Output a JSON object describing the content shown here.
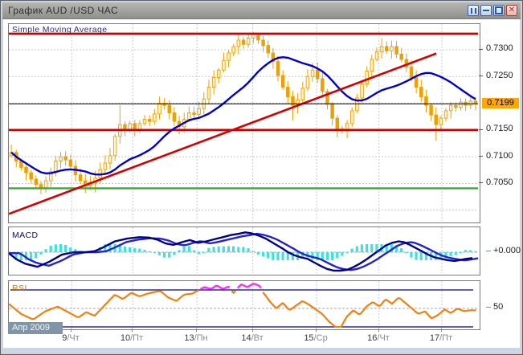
{
  "window": {
    "title": "График AUD /USD  ЧАС",
    "controls": [
      {
        "name": "pause",
        "glyph": "❚❚"
      },
      {
        "name": "minimize",
        "glyph": "—"
      },
      {
        "name": "maximize",
        "glyph": "▢"
      },
      {
        "name": "close",
        "glyph": "✕"
      }
    ]
  },
  "colors": {
    "candle": "#EDA005",
    "candle_fill_up": "#FFF3D0",
    "sma": "#0000CC",
    "trend": "#D40000",
    "hline_red": "#C80000",
    "hline_green": "#2EB02E",
    "price_line": "#000000",
    "macd_line": "#000088",
    "signal_line": "#2424CC",
    "histogram": "#3CE2E2",
    "rsi_line": "#F08010",
    "rsi_hot": "#FF2BFF",
    "rsi_level": "#000080",
    "grid": "#C8C8C8",
    "zero_dash": "#A8A8A8",
    "badge_bg": "#FFA800",
    "month_bg": "#7F96AA"
  },
  "axis": {
    "month_label": "Апр 2009",
    "x_labels": [
      {
        "d": "9",
        "w": "/Чт",
        "f": 0.134
      },
      {
        "d": "10",
        "w": "/Пт",
        "f": 0.264
      },
      {
        "d": "13",
        "w": "/Пн",
        "f": 0.401
      },
      {
        "d": "14",
        "w": "/Вт",
        "f": 0.52
      },
      {
        "d": "15",
        "w": "/Ср",
        "f": 0.656
      },
      {
        "d": "16",
        "w": "/Чт",
        "f": 0.789
      },
      {
        "d": "17",
        "w": "/Пт",
        "f": 0.923
      }
    ]
  },
  "chart_data": [
    {
      "type": "candlestick",
      "title": "Simple Moving Average",
      "pair": "AUD/USD",
      "timeframe": "1 час",
      "ylim": [
        0.698,
        0.7348
      ],
      "grid_prices": [
        0.73,
        0.725,
        0.72,
        0.715,
        0.71,
        0.705,
        0.7
      ],
      "y_tick_labels": [
        {
          "text": "0.7300",
          "value": 0.73
        },
        {
          "text": "0.7250",
          "value": 0.725
        },
        {
          "text": "0.7150",
          "value": 0.715
        },
        {
          "text": "0.7100",
          "value": 0.71
        },
        {
          "text": "0.7050",
          "value": 0.705
        }
      ],
      "current_price": 0.7199,
      "current_label": "0.7199",
      "sma_window": 16,
      "hlines": [
        {
          "price": 0.733,
          "color_key": "hline_red",
          "w": 2.6
        },
        {
          "price": 0.715,
          "color_key": "hline_red",
          "w": 2.6
        },
        {
          "price": 0.7041,
          "color_key": "hline_green",
          "w": 2.4
        },
        {
          "price": 0.7199,
          "color_key": "price_line",
          "w": 1
        }
      ],
      "trendline": {
        "f1": 0.0,
        "p1": 0.6993,
        "f2": 0.911,
        "p2": 0.7293
      },
      "closes": [
        0.7108,
        0.7092,
        0.708,
        0.707,
        0.7058,
        0.7048,
        0.704,
        0.7055,
        0.7072,
        0.7092,
        0.71,
        0.7094,
        0.7082,
        0.7066,
        0.7055,
        0.7046,
        0.7052,
        0.706,
        0.7076,
        0.7088,
        0.7102,
        0.7138,
        0.716,
        0.715,
        0.7162,
        0.7151,
        0.7162,
        0.717,
        0.7166,
        0.718,
        0.72,
        0.7196,
        0.7182,
        0.7166,
        0.7156,
        0.717,
        0.7182,
        0.7179,
        0.719,
        0.7208,
        0.723,
        0.7248,
        0.7262,
        0.728,
        0.7294,
        0.7306,
        0.7318,
        0.731,
        0.7322,
        0.7328,
        0.7318,
        0.7308,
        0.7294,
        0.7278,
        0.7252,
        0.723,
        0.7212,
        0.7196,
        0.7206,
        0.7228,
        0.725,
        0.7262,
        0.7246,
        0.7222,
        0.7198,
        0.7172,
        0.7152,
        0.7148,
        0.7162,
        0.7186,
        0.721,
        0.7236,
        0.726,
        0.7282,
        0.7296,
        0.7306,
        0.7298,
        0.7306,
        0.7292,
        0.7282,
        0.7268,
        0.7248,
        0.723,
        0.7212,
        0.7196,
        0.7178,
        0.716,
        0.7172,
        0.7186,
        0.7196,
        0.7192,
        0.7202,
        0.7196,
        0.7204,
        0.7199
      ],
      "wicks": {
        "6": [
          null,
          0.703
        ],
        "15": [
          null,
          0.7032
        ],
        "17": [
          null,
          0.7034
        ],
        "22": [
          0.7196,
          null
        ],
        "30": [
          0.7212,
          null
        ],
        "46": [
          0.733,
          null
        ],
        "49": [
          0.7333,
          null
        ],
        "50": [
          0.733,
          null
        ],
        "57": [
          null,
          0.7168
        ],
        "66": [
          null,
          0.7136
        ],
        "75": [
          0.7322,
          null
        ],
        "86": [
          null,
          0.713
        ]
      }
    },
    {
      "type": "line",
      "name": "MACD",
      "zero_label": "+0.000",
      "units": "relative",
      "signal_lag_f": 0.024,
      "signal_damp": 0.93,
      "hist_gain": 1.6,
      "points": [
        [
          0.0,
          -0.05
        ],
        [
          0.017,
          -0.35
        ],
        [
          0.035,
          -0.55
        ],
        [
          0.061,
          -0.7
        ],
        [
          0.087,
          -0.45
        ],
        [
          0.113,
          -0.12
        ],
        [
          0.139,
          0.0
        ],
        [
          0.165,
          0.0
        ],
        [
          0.183,
          0.05
        ],
        [
          0.2,
          0.22
        ],
        [
          0.226,
          0.52
        ],
        [
          0.252,
          0.65
        ],
        [
          0.278,
          0.72
        ],
        [
          0.299,
          0.7
        ],
        [
          0.317,
          0.6
        ],
        [
          0.334,
          0.42
        ],
        [
          0.351,
          0.35
        ],
        [
          0.369,
          0.48
        ],
        [
          0.386,
          0.58
        ],
        [
          0.403,
          0.45
        ],
        [
          0.421,
          0.52
        ],
        [
          0.438,
          0.62
        ],
        [
          0.456,
          0.72
        ],
        [
          0.473,
          0.82
        ],
        [
          0.49,
          0.88
        ],
        [
          0.504,
          0.95
        ],
        [
          0.518,
          0.9
        ],
        [
          0.532,
          0.8
        ],
        [
          0.548,
          0.65
        ],
        [
          0.565,
          0.42
        ],
        [
          0.583,
          0.18
        ],
        [
          0.595,
          0.0
        ],
        [
          0.609,
          -0.15
        ],
        [
          0.623,
          -0.25
        ],
        [
          0.637,
          -0.32
        ],
        [
          0.65,
          -0.48
        ],
        [
          0.664,
          -0.65
        ],
        [
          0.678,
          -0.8
        ],
        [
          0.692,
          -0.88
        ],
        [
          0.706,
          -0.92
        ],
        [
          0.72,
          -0.85
        ],
        [
          0.734,
          -0.72
        ],
        [
          0.748,
          -0.55
        ],
        [
          0.762,
          -0.35
        ],
        [
          0.776,
          -0.12
        ],
        [
          0.79,
          0.1
        ],
        [
          0.803,
          0.32
        ],
        [
          0.817,
          0.45
        ],
        [
          0.831,
          0.52
        ],
        [
          0.842,
          0.48
        ],
        [
          0.852,
          0.38
        ],
        [
          0.866,
          0.22
        ],
        [
          0.88,
          0.05
        ],
        [
          0.894,
          -0.12
        ],
        [
          0.908,
          -0.25
        ],
        [
          0.922,
          -0.32
        ],
        [
          0.936,
          -0.38
        ],
        [
          0.95,
          -0.42
        ],
        [
          0.96,
          -0.38
        ],
        [
          0.974,
          -0.32
        ],
        [
          0.988,
          -0.28
        ]
      ]
    },
    {
      "type": "line",
      "name": "RSI",
      "levels": {
        "upper": 70,
        "mid": 50,
        "lower": 30
      },
      "mid_label": "50",
      "overbought_threshold": 70,
      "points": [
        [
          0.0,
          55
        ],
        [
          0.026,
          44
        ],
        [
          0.052,
          38
        ],
        [
          0.078,
          47
        ],
        [
          0.104,
          52
        ],
        [
          0.13,
          45
        ],
        [
          0.148,
          40
        ],
        [
          0.165,
          46
        ],
        [
          0.183,
          42
        ],
        [
          0.209,
          56
        ],
        [
          0.226,
          65
        ],
        [
          0.243,
          60
        ],
        [
          0.261,
          67
        ],
        [
          0.278,
          63
        ],
        [
          0.296,
          66
        ],
        [
          0.313,
          68
        ],
        [
          0.323,
          69
        ],
        [
          0.339,
          62
        ],
        [
          0.357,
          58
        ],
        [
          0.374,
          65
        ],
        [
          0.391,
          66
        ],
        [
          0.405,
          70
        ],
        [
          0.417,
          73
        ],
        [
          0.431,
          71
        ],
        [
          0.443,
          75
        ],
        [
          0.456,
          71
        ],
        [
          0.47,
          74
        ],
        [
          0.478,
          66
        ],
        [
          0.487,
          72
        ],
        [
          0.496,
          76
        ],
        [
          0.508,
          73
        ],
        [
          0.522,
          77
        ],
        [
          0.536,
          74
        ],
        [
          0.541,
          68
        ],
        [
          0.557,
          57
        ],
        [
          0.57,
          50
        ],
        [
          0.584,
          56
        ],
        [
          0.598,
          48
        ],
        [
          0.612,
          53
        ],
        [
          0.626,
          58
        ],
        [
          0.64,
          54
        ],
        [
          0.654,
          49
        ],
        [
          0.668,
          44
        ],
        [
          0.682,
          36
        ],
        [
          0.696,
          30
        ],
        [
          0.706,
          28
        ],
        [
          0.72,
          41
        ],
        [
          0.734,
          48
        ],
        [
          0.748,
          43
        ],
        [
          0.762,
          52
        ],
        [
          0.776,
          57
        ],
        [
          0.79,
          52
        ],
        [
          0.803,
          60
        ],
        [
          0.817,
          55
        ],
        [
          0.831,
          62
        ],
        [
          0.845,
          56
        ],
        [
          0.859,
          50
        ],
        [
          0.873,
          44
        ],
        [
          0.887,
          47
        ],
        [
          0.901,
          39
        ],
        [
          0.915,
          43
        ],
        [
          0.929,
          49
        ],
        [
          0.942,
          45
        ],
        [
          0.956,
          50
        ],
        [
          0.97,
          47
        ],
        [
          0.984,
          48
        ]
      ]
    }
  ]
}
